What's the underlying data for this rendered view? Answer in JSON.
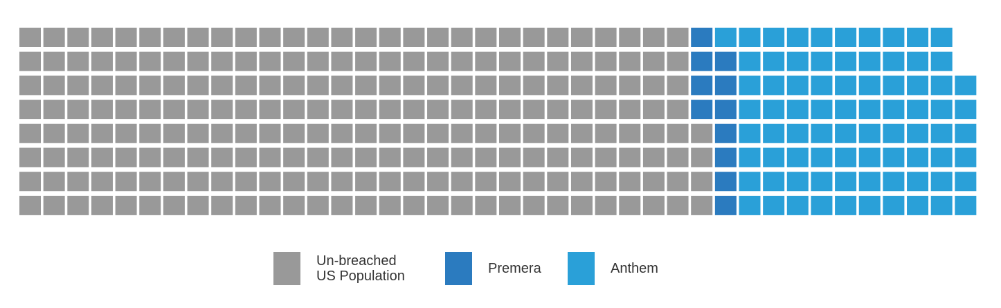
{
  "chart_data": {
    "type": "waffle",
    "title": "",
    "row_columns": [
      39,
      39,
      40,
      40,
      40,
      40,
      40,
      40
    ],
    "series": [
      {
        "name": "Un-breached US Population",
        "color": "#999999",
        "cells_per_row": [
          28,
          28,
          28,
          28,
          29,
          29,
          29,
          29
        ]
      },
      {
        "name": "Premera",
        "color": "#2b7bbf",
        "cells_per_row": [
          1,
          2,
          2,
          2,
          1,
          1,
          1,
          1
        ]
      },
      {
        "name": "Anthem",
        "color": "#2aa0d8",
        "cells_per_row": [
          10,
          9,
          10,
          10,
          10,
          10,
          10,
          10
        ]
      }
    ],
    "legend_position": "bottom-center"
  },
  "legend": {
    "items": [
      {
        "line1": "Un-breached",
        "line2": "US Population",
        "color": "#999999"
      },
      {
        "line1": "Premera",
        "line2": "",
        "color": "#2b7bbf"
      },
      {
        "line1": "Anthem",
        "line2": "",
        "color": "#2aa0d8"
      }
    ]
  }
}
